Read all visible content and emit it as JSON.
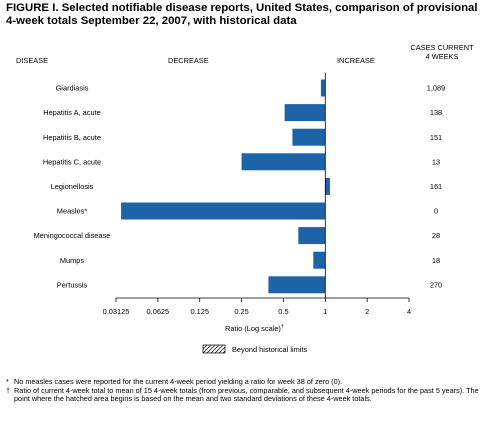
{
  "title_line1": "FIGURE I. Selected notifiable disease reports, United States, comparison of provisional",
  "title_line2": "4-week totals September 22, 2007, with historical data",
  "headers": {
    "disease": "DISEASE",
    "decrease": "DECREASE",
    "increase": "INCREASE",
    "cases_line1": "CASES CURRENT",
    "cases_line2": "4 WEEKS"
  },
  "chart_data": {
    "type": "bar",
    "orientation": "horizontal",
    "xscale": "log2",
    "xlim": [
      0.03125,
      4
    ],
    "xlabel": "Ratio (Log scale)",
    "xlabel_footnote_marker": "†",
    "xticks": [
      0.03125,
      0.0625,
      0.125,
      0.25,
      0.5,
      1,
      2,
      4
    ],
    "xtick_labels": [
      "0.03125",
      "0.0625",
      "0.125",
      "0.25",
      "0.5",
      "1",
      "2",
      "4"
    ],
    "baseline": 1,
    "bar_color": "#1c63a8",
    "categories": [
      "Giardiasis",
      "Hepatitis A, acute",
      "Hepatitis B, acute",
      "Hepatitis C, acute",
      "Legionellosis",
      "Measles*",
      "Meningococcal disease",
      "Mumps",
      "Pertussis"
    ],
    "values": [
      0.93,
      0.51,
      0.58,
      0.25,
      1.08,
      0.034,
      0.64,
      0.82,
      0.39
    ],
    "cases_current_4_weeks": [
      "1,089",
      "138",
      "151",
      "13",
      "161",
      "0",
      "28",
      "18",
      "270"
    ],
    "legend": [
      {
        "label": "Beyond historical limits",
        "pattern": "hatched"
      }
    ]
  },
  "footnotes": [
    {
      "symbol": "*",
      "text": "No measles cases were reported for the current 4-week period yielding a ratio for week 38 of zero (0)."
    },
    {
      "symbol": "†",
      "text": "Ratio of current 4-week total to mean of 15 4-week totals (from previous, comparable, and subsequent 4-week periods for the past 5 years). The point where the hatched area begins is based on the mean and two standard deviations of these 4-week totals."
    }
  ]
}
